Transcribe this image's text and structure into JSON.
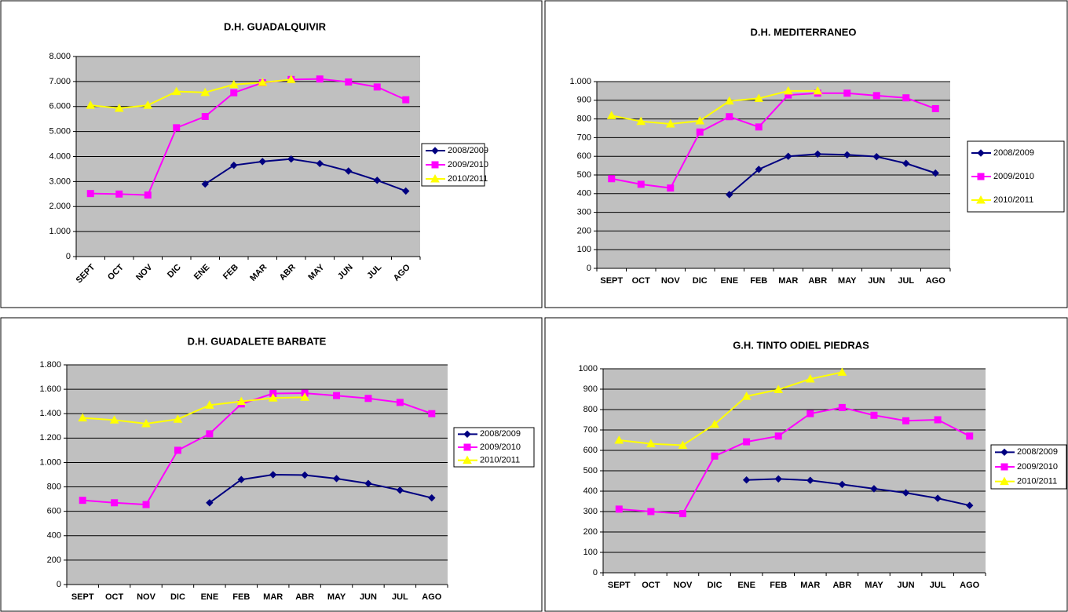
{
  "chart_data": [
    {
      "type": "line",
      "title": "D.H. GUADALQUIVIR",
      "categories": [
        "SEPT",
        "OCT",
        "NOV",
        "DIC",
        "ENE",
        "FEB",
        "MAR",
        "ABR",
        "MAY",
        "JUN",
        "JUL",
        "AGO"
      ],
      "series": [
        {
          "name": "2008/2009",
          "color": "#000080",
          "marker": "diamond",
          "values": [
            null,
            null,
            null,
            null,
            2900,
            3650,
            3800,
            3900,
            3720,
            3420,
            3050,
            2620
          ]
        },
        {
          "name": "2009/2010",
          "color": "#ff00ff",
          "marker": "square",
          "values": [
            2520,
            2500,
            2460,
            5150,
            5600,
            6550,
            6950,
            7080,
            7100,
            6980,
            6780,
            6270
          ]
        },
        {
          "name": "2010/2011",
          "color": "#ffff00",
          "marker": "triangle",
          "values": [
            6050,
            5930,
            6050,
            6600,
            6560,
            6880,
            6960,
            7080,
            null,
            null,
            null,
            null
          ]
        }
      ],
      "ylim": [
        0,
        8000
      ],
      "yticks": [
        0,
        {
          "value": 1000,
          "label": "1.000"
        },
        {
          "value": 2000,
          "label": "2.000"
        },
        {
          "value": 3000,
          "label": "3.000"
        },
        {
          "value": 4000,
          "label": "4.000"
        },
        {
          "value": 5000,
          "label": "5.000"
        },
        {
          "value": 6000,
          "label": "6.000"
        },
        {
          "value": 7000,
          "label": "7.000"
        },
        {
          "value": 8000,
          "label": "8.000"
        }
      ],
      "grid": true,
      "legend": "right"
    },
    {
      "type": "line",
      "title": "D.H. MEDITERRANEO",
      "categories": [
        "SEPT",
        "OCT",
        "NOV",
        "DIC",
        "ENE",
        "FEB",
        "MAR",
        "ABR",
        "MAY",
        "JUN",
        "JUL",
        "AGO"
      ],
      "series": [
        {
          "name": "2008/2009",
          "color": "#000080",
          "marker": "diamond",
          "values": [
            null,
            null,
            null,
            null,
            395,
            530,
            600,
            612,
            608,
            598,
            562,
            510
          ]
        },
        {
          "name": "2009/2010",
          "color": "#ff00ff",
          "marker": "square",
          "values": [
            480,
            450,
            430,
            730,
            812,
            757,
            928,
            938,
            938,
            925,
            913,
            855
          ]
        },
        {
          "name": "2010/2011",
          "color": "#ffff00",
          "marker": "triangle",
          "values": [
            818,
            787,
            773,
            790,
            896,
            910,
            950,
            950,
            null,
            null,
            null,
            null
          ]
        }
      ],
      "ylim": [
        0,
        1000
      ],
      "yticks": [
        0,
        100,
        200,
        300,
        400,
        500,
        600,
        700,
        800,
        900,
        {
          "value": 1000,
          "label": "1.000"
        }
      ],
      "grid": true,
      "legend": "right"
    },
    {
      "type": "line",
      "title": "D.H. GUADALETE BARBATE",
      "categories": [
        "SEPT",
        "OCT",
        "NOV",
        "DIC",
        "ENE",
        "FEB",
        "MAR",
        "ABR",
        "MAY",
        "JUN",
        "JUL",
        "AGO"
      ],
      "series": [
        {
          "name": "2008/2009",
          "color": "#000080",
          "marker": "diamond",
          "values": [
            null,
            null,
            null,
            null,
            670,
            860,
            900,
            897,
            868,
            828,
            773,
            710
          ]
        },
        {
          "name": "2009/2010",
          "color": "#ff00ff",
          "marker": "square",
          "values": [
            690,
            670,
            655,
            1100,
            1235,
            1480,
            1565,
            1568,
            1548,
            1525,
            1492,
            1400
          ]
        },
        {
          "name": "2010/2011",
          "color": "#ffff00",
          "marker": "triangle",
          "values": [
            1365,
            1348,
            1318,
            1355,
            1470,
            1500,
            1528,
            1535,
            null,
            null,
            null,
            null
          ]
        }
      ],
      "ylim": [
        0,
        1800
      ],
      "yticks": [
        0,
        200,
        400,
        600,
        800,
        {
          "value": 1000,
          "label": "1.000"
        },
        {
          "value": 1200,
          "label": "1.200"
        },
        {
          "value": 1400,
          "label": "1.400"
        },
        {
          "value": 1600,
          "label": "1.600"
        },
        {
          "value": 1800,
          "label": "1.800"
        }
      ],
      "grid": true,
      "legend": "right"
    },
    {
      "type": "line",
      "title": "G.H. TINTO ODIEL PIEDRAS",
      "categories": [
        "SEPT",
        "OCT",
        "NOV",
        "DIC",
        "ENE",
        "FEB",
        "MAR",
        "ABR",
        "MAY",
        "JUN",
        "JUL",
        "AGO"
      ],
      "series": [
        {
          "name": "2008/2009",
          "color": "#000080",
          "marker": "diamond",
          "values": [
            null,
            null,
            null,
            null,
            455,
            460,
            453,
            433,
            412,
            392,
            365,
            330
          ]
        },
        {
          "name": "2009/2010",
          "color": "#ff00ff",
          "marker": "square",
          "values": [
            312,
            300,
            290,
            572,
            642,
            670,
            780,
            810,
            772,
            745,
            750,
            670
          ]
        },
        {
          "name": "2010/2011",
          "color": "#ffff00",
          "marker": "triangle",
          "values": [
            650,
            632,
            625,
            728,
            865,
            898,
            950,
            983,
            null,
            null,
            null,
            null
          ]
        }
      ],
      "ylim": [
        0,
        1000
      ],
      "yticks": [
        0,
        100,
        200,
        300,
        400,
        500,
        600,
        700,
        800,
        900,
        1000
      ],
      "grid": true,
      "legend": "right"
    }
  ]
}
